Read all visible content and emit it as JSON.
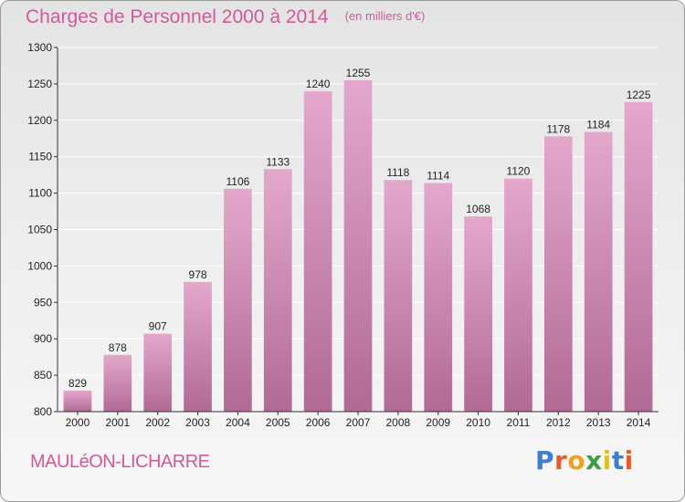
{
  "header": {
    "title": "Charges de Personnel 2000 à 2014",
    "subtitle": "(en milliers d'€)"
  },
  "footer": {
    "commune": "MAULéON-LICHARRE",
    "brand": "Proxiti",
    "brand_colors": [
      "#3a7fd0",
      "#e85a2a",
      "#f0a020",
      "#3aa040",
      "#e0c020",
      "#3a7fd0",
      "#e85a2a"
    ]
  },
  "colors": {
    "bar_top": "#e4a8cc",
    "bar_bottom": "#b06a94",
    "axis": "#333333",
    "grid": "#ffffff",
    "label": "#222222",
    "accent": "#d05a9a"
  },
  "chart_data": {
    "type": "bar",
    "title": "Charges de Personnel 2000 à 2014",
    "subtitle": "(en milliers d'€)",
    "xlabel": "",
    "ylabel": "",
    "categories": [
      "2000",
      "2001",
      "2002",
      "2003",
      "2004",
      "2005",
      "2006",
      "2007",
      "2008",
      "2009",
      "2010",
      "2011",
      "2012",
      "2013",
      "2014"
    ],
    "values": [
      829,
      878,
      907,
      978,
      1106,
      1133,
      1240,
      1255,
      1118,
      1114,
      1068,
      1120,
      1178,
      1184,
      1225
    ],
    "ylim": [
      800,
      1300
    ],
    "yticks": [
      800,
      850,
      900,
      950,
      1000,
      1050,
      1100,
      1150,
      1200,
      1250,
      1300
    ],
    "grid": true,
    "legend": "none"
  }
}
